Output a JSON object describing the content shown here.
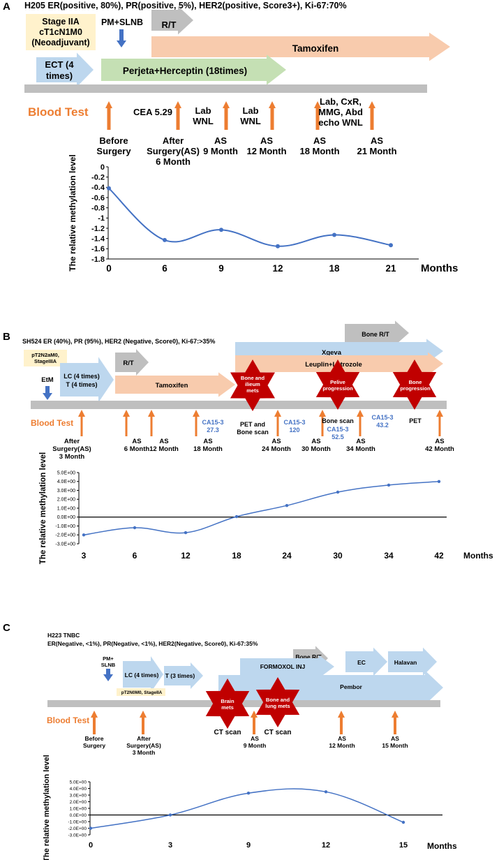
{
  "colors": {
    "blue_arrow": "#bdd7ee",
    "green_arrow": "#c5e0b4",
    "salmon_arrow": "#f8cbad",
    "gray_arrow": "#bfbfbf",
    "timeline": "#bfbfbf",
    "orange": "#ed7d31",
    "dark_blue": "#4472c4",
    "star": "#c00000",
    "stage_box": "#fff2cc",
    "line": "#4472c4",
    "text_blue": "#4472c4"
  },
  "panel_a": {
    "label": "A",
    "header": "H205    ER(positive, 80%), PR(positive, 5%), HER2(positive, Score3+), Ki-67:70%",
    "stage": [
      "Stage IIA",
      "cT1cN1M0",
      "(Neoadjuvant)"
    ],
    "surgery": "PM+SLNB",
    "treatments": {
      "rt": "R/T",
      "tamoxifen": "Tamoxifen",
      "ect": [
        "ECT (4",
        "times)"
      ],
      "perjeta": "Perjeta+Herceptin (18times)"
    },
    "blood_test": "Blood Test",
    "annotations": {
      "cea": "CEA 5.29",
      "lab1": [
        "Lab",
        "WNL"
      ],
      "lab2": [
        "Lab",
        "WNL"
      ],
      "lab3": [
        "Lab, CxR,",
        "MMG, Abd",
        "echo WNL"
      ]
    },
    "timepoints": [
      [
        "Before",
        "Surgery"
      ],
      [
        "After",
        "Surgery(AS)",
        "6 Month"
      ],
      [
        "AS",
        "9 Month"
      ],
      [
        "AS",
        "12 Month"
      ],
      [
        "AS",
        "18 Month"
      ],
      [
        "AS",
        "21 Month"
      ]
    ],
    "chart_data": {
      "type": "line",
      "x": [
        0,
        6,
        9,
        12,
        18,
        21
      ],
      "categories": [
        "0",
        "6",
        "9",
        "12",
        "18",
        "21"
      ],
      "values": [
        -0.42,
        -1.43,
        -1.23,
        -1.55,
        -1.33,
        -1.53
      ],
      "yticks": [
        "0",
        "-0.2",
        "-0.4",
        "-0.6",
        "-0.8",
        "-1",
        "-1.2",
        "-1.4",
        "-1.6",
        "-1.8"
      ],
      "ylim": [
        -1.8,
        0
      ],
      "ylabel": "The relative methylation level",
      "xlabel": "Months",
      "smooth": true
    }
  },
  "panel_b": {
    "label": "B",
    "header": "SH524    ER (40%), PR (95%), HER2 (Negative, Score0), Ki-67:>35%",
    "stage": [
      "pT2N2aM0,",
      "StageIIIA"
    ],
    "surgery": "EtM",
    "treatments": {
      "bone_rt": "Bone R/T",
      "xgeva": "Xgeva",
      "leuplin": "Leuplin+Letrozole",
      "rt": "R/T",
      "lc_t": [
        "LC (4 times)",
        "T (4 times)"
      ],
      "tamoxifen": "Tamoxifen"
    },
    "stars": [
      [
        "Bone and",
        "ilieum",
        "mets"
      ],
      [
        "Pelive",
        "progression"
      ],
      [
        "Bone",
        "progression"
      ]
    ],
    "blood_test": "Blood Test",
    "annotations": {
      "ca1": [
        "CA15-3",
        "27.3"
      ],
      "pet_bone": [
        "PET and",
        "Bone scan"
      ],
      "ca2": [
        "CA15-3",
        "120"
      ],
      "bone_scan": "Bone scan",
      "ca3": [
        "CA15-3",
        "52.5"
      ],
      "ca4": [
        "CA15-3",
        "43.2"
      ],
      "pet": "PET"
    },
    "timepoints": [
      [
        "After",
        "Surgery(AS)",
        "3 Month"
      ],
      [
        "AS",
        "6 Month"
      ],
      [
        "AS",
        "12 Month"
      ],
      [
        "AS",
        "18 Month"
      ],
      [
        "AS",
        "24 Month"
      ],
      [
        "AS",
        "30 Month"
      ],
      [
        "AS",
        "34 Month"
      ],
      [
        "AS",
        "42 Month"
      ]
    ],
    "chart_data": {
      "type": "line",
      "categories": [
        "3",
        "6",
        "12",
        "18",
        "24",
        "30",
        "34",
        "42"
      ],
      "values": [
        -2.0,
        -1.2,
        -1.75,
        0.05,
        1.3,
        2.8,
        3.6,
        4.0
      ],
      "yticks": [
        "5.0E+00",
        "4.0E+00",
        "3.0E+00",
        "2.0E+00",
        "1.0E+00",
        "0.0E+00",
        "-1.0E+00",
        "-2.0E+00",
        "-3.0E+00"
      ],
      "ylim": [
        -3,
        5
      ],
      "ylabel": "The relative methylation level",
      "xlabel": "Months",
      "zero_line": true,
      "smooth": true
    }
  },
  "panel_c": {
    "label": "C",
    "header1": "H223    TNBC",
    "header2": "ER(Negative, <1%), PR(Negative, <1%), HER2(Negative, Score0), Ki-67:35%",
    "surgery": [
      "PM+",
      "SLNB"
    ],
    "stage": "pT2N0M0, StageIIA",
    "treatments": {
      "bone_rt": "Bone R/T",
      "formoxol": "FORMOXOL INJ",
      "ec": "EC",
      "halavan": "Halavan",
      "lc": "LC (4 times)",
      "t": "T (3 times)",
      "pembor": "Pembor"
    },
    "stars": [
      [
        "Brain",
        "mets"
      ],
      [
        "Bone and",
        "lung mets"
      ]
    ],
    "blood_test": "Blood Test",
    "annotations": {
      "ct1": "CT scan",
      "ct2": "CT scan"
    },
    "timepoints": [
      [
        "Before",
        "Surgery"
      ],
      [
        "After",
        "Surgery(AS)",
        "3 Month"
      ],
      [
        "AS",
        "9 Month"
      ],
      [
        "AS",
        "12 Month"
      ],
      [
        "AS",
        "15 Month"
      ]
    ],
    "chart_data": {
      "type": "line",
      "categories": [
        "0",
        "3",
        "9",
        "12",
        "15"
      ],
      "values": [
        -2.0,
        0.0,
        3.3,
        3.5,
        -1.1
      ],
      "yticks": [
        "5.0E+00",
        "4.0E+00",
        "3.0E+00",
        "2.0E+00",
        "1.0E+00",
        "0.0E+00",
        "-1.0E+00",
        "-2.0E+00",
        "-3.0E+00"
      ],
      "ylim": [
        -3,
        5
      ],
      "ylabel": "The relative methylation level",
      "xlabel": "Months",
      "zero_line": true,
      "smooth": true
    }
  }
}
